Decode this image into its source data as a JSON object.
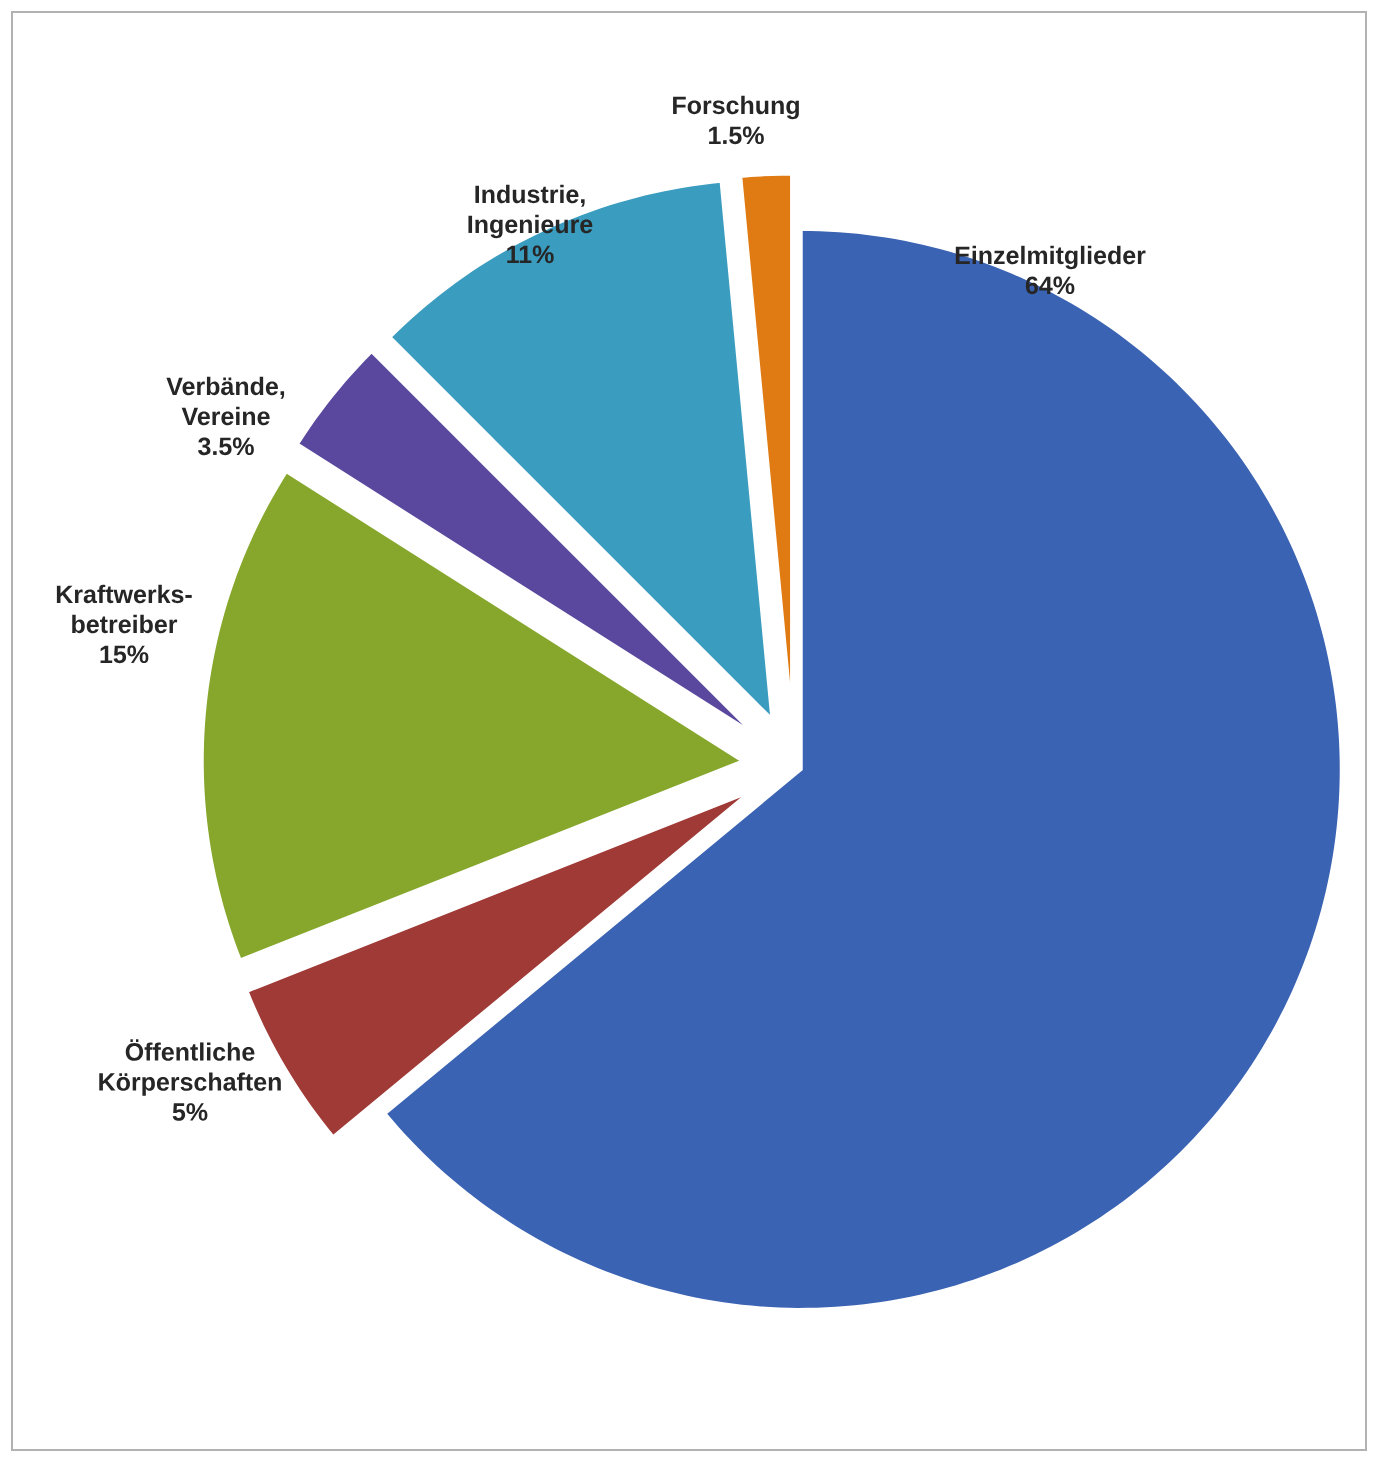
{
  "chart_data": {
    "type": "pie",
    "categories": [
      "Einzelmitglieder",
      "Öffentliche Körperschaften",
      "Kraftwerks-betreiber",
      "Verbände, Vereine",
      "Industrie, Ingenieure",
      "Forschung"
    ],
    "values": [
      64,
      5,
      15,
      3.5,
      11,
      1.5
    ],
    "value_labels": [
      "64%",
      "5%",
      "15%",
      "3.5%",
      "11%",
      "1.5%"
    ],
    "colors": [
      "#3b63b3",
      "#a03a36",
      "#86a72b",
      "#5a479e",
      "#3a9cbf",
      "#e07b14"
    ]
  }
}
